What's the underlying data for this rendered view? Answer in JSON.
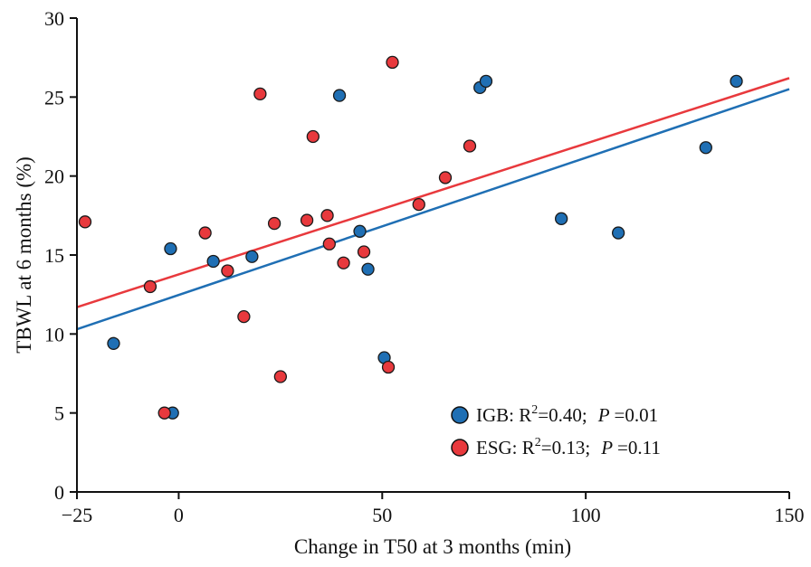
{
  "chart_data": {
    "type": "scatter",
    "xlabel": "Change in T50 at 3 months (min)",
    "ylabel": "TBWL at 6 months (%)",
    "xlim": [
      -25,
      150
    ],
    "ylim": [
      0,
      30
    ],
    "xticks": [
      -25,
      0,
      50,
      100,
      150
    ],
    "xtick_labels": [
      "−25",
      "0",
      "50",
      "100",
      "150"
    ],
    "yticks": [
      0,
      5,
      10,
      15,
      20,
      25,
      30
    ],
    "grid": false,
    "legend_position": "bottom-right",
    "series": [
      {
        "key": "IGB",
        "color": "#1f6fb4",
        "legend": {
          "name": "IGB: R",
          "sup": "2",
          "r2": "=0.40;",
          "p_label": "P",
          "p_value": "=0.01"
        },
        "points": [
          [
            -16,
            9.4
          ],
          [
            -2,
            15.4
          ],
          [
            -1.5,
            5.0
          ],
          [
            8.5,
            14.6
          ],
          [
            18,
            14.9
          ],
          [
            39.5,
            25.1
          ],
          [
            44.5,
            16.5
          ],
          [
            46.5,
            14.1
          ],
          [
            50.5,
            8.5
          ],
          [
            74,
            25.6
          ],
          [
            75.5,
            26.0
          ],
          [
            94,
            17.3
          ],
          [
            108,
            16.4
          ],
          [
            129.5,
            21.8
          ],
          [
            137,
            26.0
          ]
        ],
        "trendline": {
          "x": [
            -25,
            150
          ],
          "y": [
            10.3,
            25.5
          ]
        }
      },
      {
        "key": "ESG",
        "color": "#e8393d",
        "legend": {
          "name": "ESG: R",
          "sup": "2",
          "r2": "=0.13;",
          "p_label": "P",
          "p_value": "=0.11"
        },
        "points": [
          [
            -23,
            17.1
          ],
          [
            -7,
            13.0
          ],
          [
            -3.5,
            5.0
          ],
          [
            6.5,
            16.4
          ],
          [
            12,
            14.0
          ],
          [
            16,
            11.1
          ],
          [
            20,
            25.2
          ],
          [
            23.5,
            17.0
          ],
          [
            25,
            7.3
          ],
          [
            31.5,
            17.2
          ],
          [
            33,
            22.5
          ],
          [
            36.5,
            17.5
          ],
          [
            37,
            15.7
          ],
          [
            40.5,
            14.5
          ],
          [
            45.5,
            15.2
          ],
          [
            51.5,
            7.9
          ],
          [
            52.5,
            27.2
          ],
          [
            59,
            18.2
          ],
          [
            65.5,
            19.9
          ],
          [
            71.5,
            21.9
          ]
        ],
        "trendline": {
          "x": [
            -25,
            150
          ],
          "y": [
            11.7,
            26.2
          ]
        }
      }
    ]
  }
}
